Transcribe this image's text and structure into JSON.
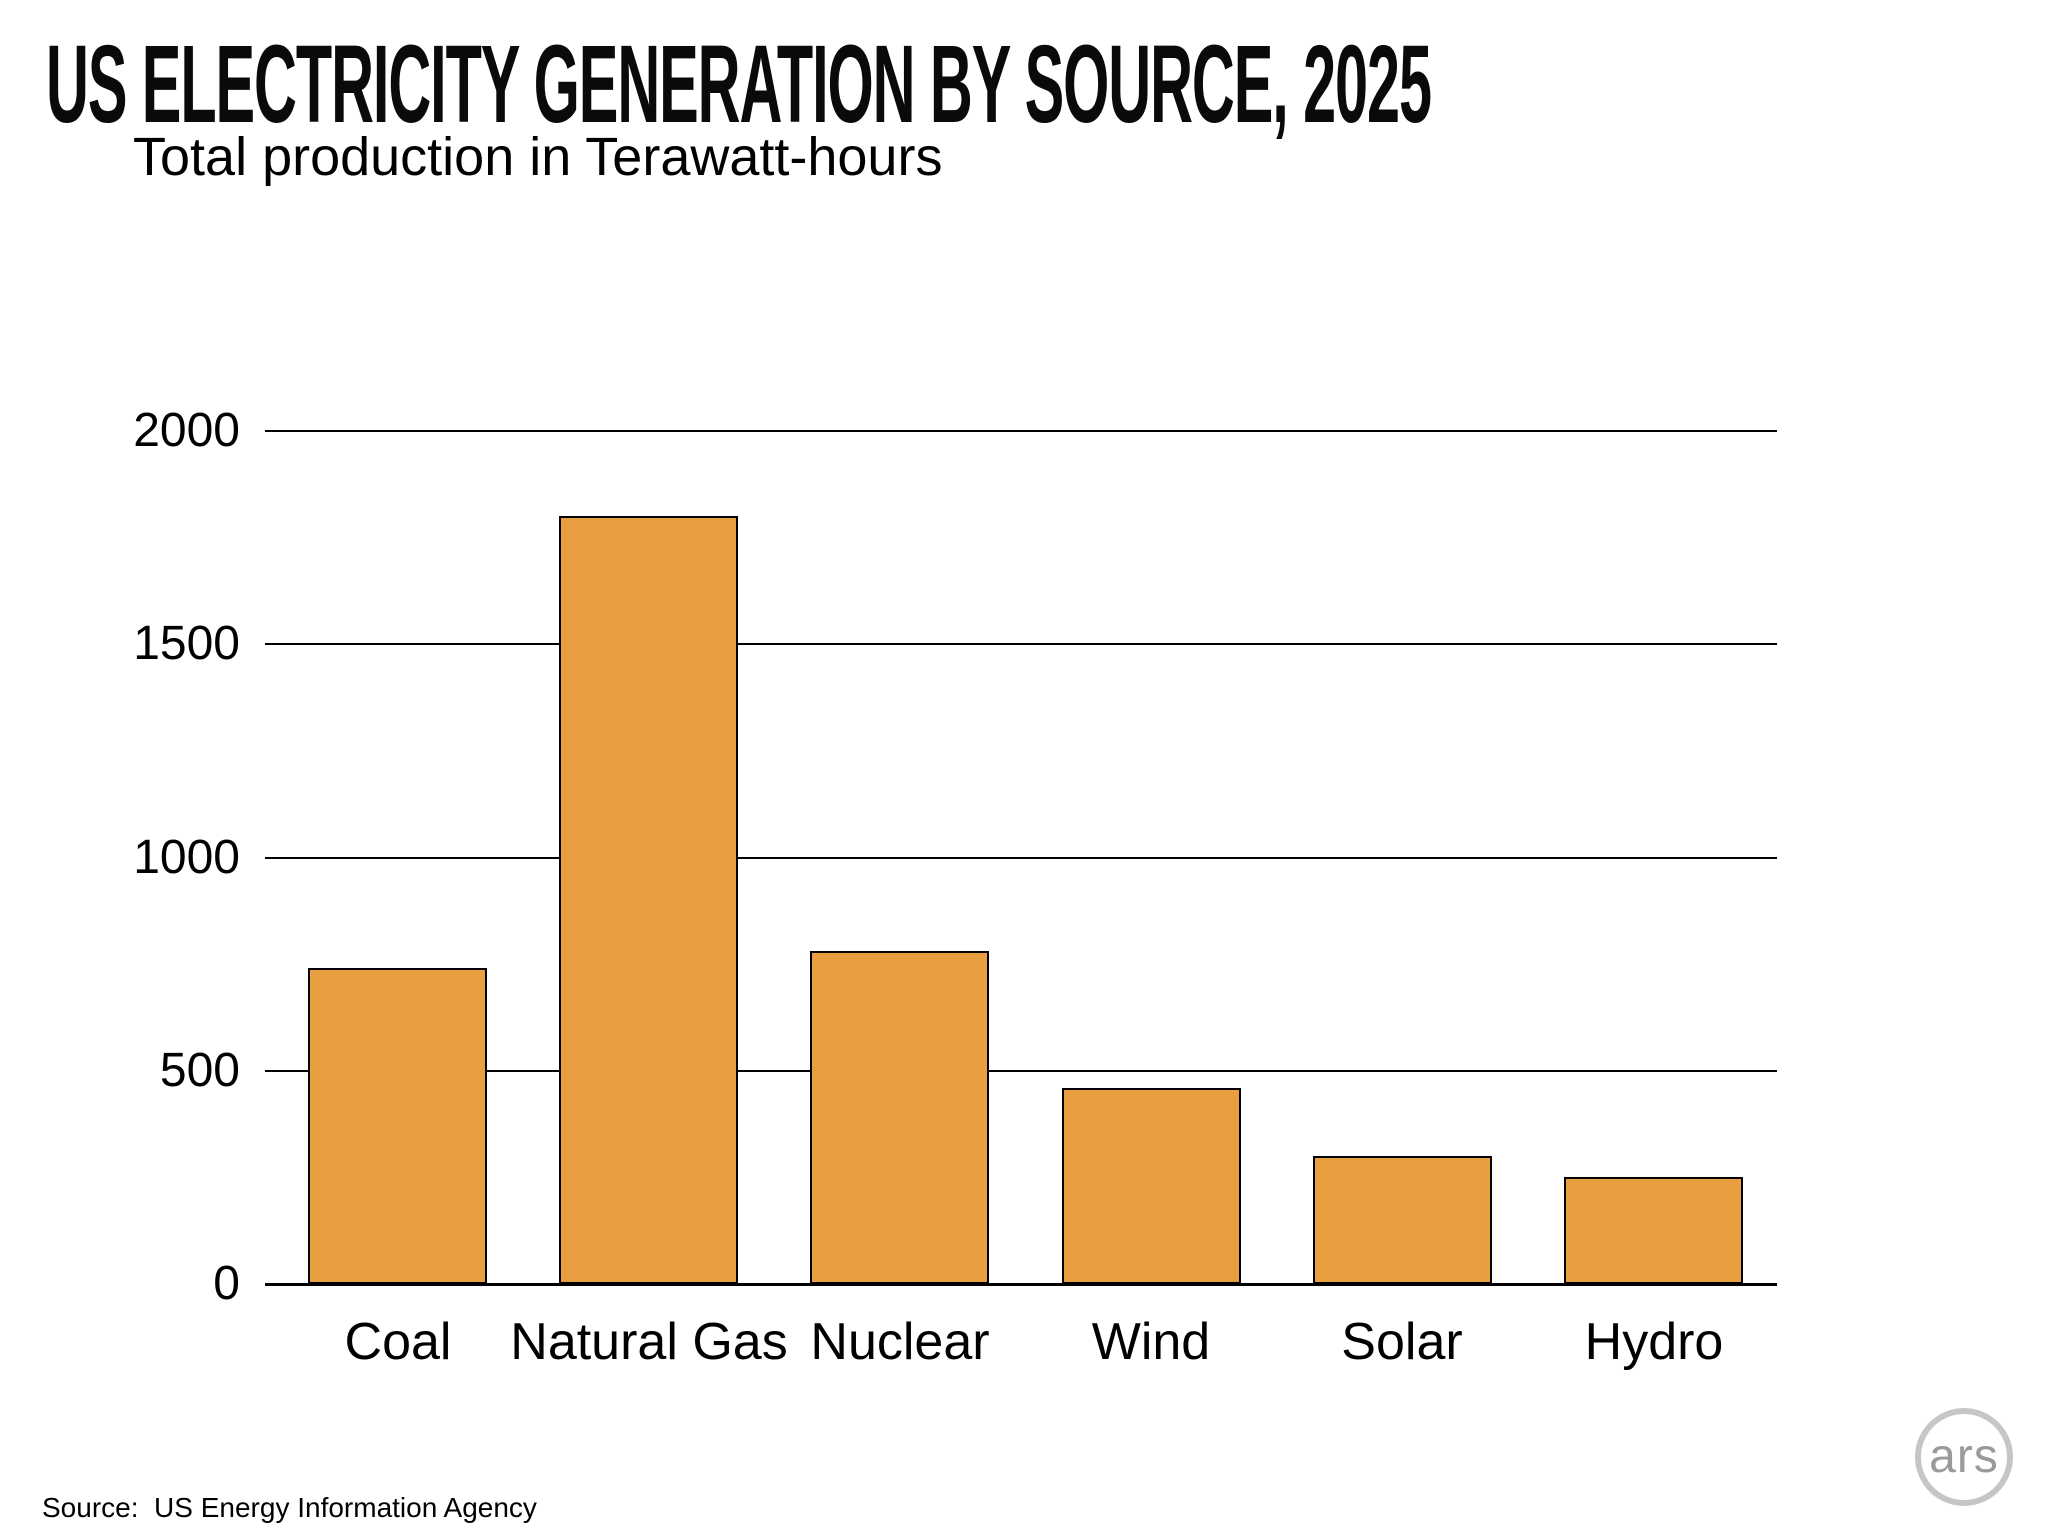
{
  "title": "US ELECTRICITY GENERATION BY SOURCE, 2025",
  "subtitle": "Total production in Terawatt-hours",
  "source_label": "Source:  US Energy Information Agency",
  "logo_text": "ars",
  "colors": {
    "background": "#FFFFFF",
    "bar_fill": "#E99E40",
    "bar_border": "#000000",
    "gridline": "#000000",
    "text": "#000000",
    "logo_ring": "#C6C6C6",
    "logo_text": "#9A9A9A"
  },
  "chart_data": {
    "type": "bar",
    "title": "US Electricity Generation by Source, 2025",
    "subtitle": "Total production in Terawatt-hours",
    "categories": [
      "Coal",
      "Natural Gas",
      "Nuclear",
      "Wind",
      "Solar",
      "Hydro"
    ],
    "values": [
      740,
      1800,
      780,
      460,
      300,
      250
    ],
    "units": "Terawatt-hours",
    "xlabel": "",
    "ylabel": "",
    "ylim": [
      0,
      2000
    ],
    "yticks": [
      0,
      500,
      1000,
      1500,
      2000
    ],
    "grid": "horizontal",
    "legend": "none",
    "source": "US Energy Information Agency"
  }
}
